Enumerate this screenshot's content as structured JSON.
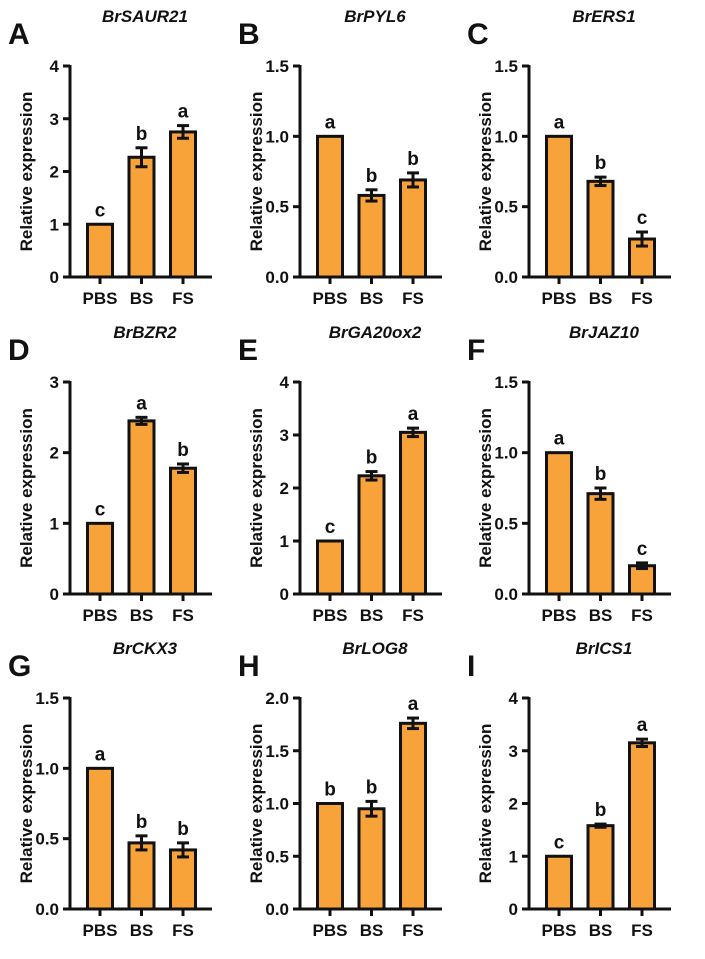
{
  "colors": {
    "bar": "#F7A33A",
    "stroke": "#111111"
  },
  "chart_data": [
    {
      "type": "bar",
      "panel": "A",
      "title": "BrSAUR21",
      "ylabel": "Relative expression",
      "categories": [
        "PBS",
        "BS",
        "FS"
      ],
      "values": [
        1.0,
        2.27,
        2.75
      ],
      "errors": [
        0,
        0.18,
        0.12
      ],
      "letters": [
        "c",
        "b",
        "a"
      ],
      "ylim": [
        0,
        4
      ],
      "yticks": [
        "0",
        "1",
        "2",
        "3",
        "4"
      ],
      "ytick_values": [
        0,
        1,
        2,
        3,
        4
      ]
    },
    {
      "type": "bar",
      "panel": "B",
      "title": "BrPYL6",
      "ylabel": "Relative expression",
      "categories": [
        "PBS",
        "BS",
        "FS"
      ],
      "values": [
        1.0,
        0.58,
        0.69
      ],
      "errors": [
        0,
        0.04,
        0.05
      ],
      "letters": [
        "a",
        "b",
        "b"
      ],
      "ylim": [
        0,
        1.5
      ],
      "yticks": [
        "0.0",
        "0.5",
        "1.0",
        "1.5"
      ],
      "ytick_values": [
        0,
        0.5,
        1,
        1.5
      ]
    },
    {
      "type": "bar",
      "panel": "C",
      "title": "BrERS1",
      "ylabel": "Relative expression",
      "categories": [
        "PBS",
        "BS",
        "FS"
      ],
      "values": [
        1.0,
        0.68,
        0.27
      ],
      "errors": [
        0,
        0.03,
        0.05
      ],
      "letters": [
        "a",
        "b",
        "c"
      ],
      "ylim": [
        0,
        1.5
      ],
      "yticks": [
        "0.0",
        "0.5",
        "1.0",
        "1.5"
      ],
      "ytick_values": [
        0,
        0.5,
        1,
        1.5
      ]
    },
    {
      "type": "bar",
      "panel": "D",
      "title": "BrBZR2",
      "ylabel": "Relative expression",
      "categories": [
        "PBS",
        "BS",
        "FS"
      ],
      "values": [
        1.0,
        2.45,
        1.78
      ],
      "errors": [
        0,
        0.05,
        0.06
      ],
      "letters": [
        "c",
        "a",
        "b"
      ],
      "ylim": [
        0,
        3
      ],
      "yticks": [
        "0",
        "1",
        "2",
        "3"
      ],
      "ytick_values": [
        0,
        1,
        2,
        3
      ]
    },
    {
      "type": "bar",
      "panel": "E",
      "title": "BrGA20ox2",
      "ylabel": "Relative expression",
      "categories": [
        "PBS",
        "BS",
        "FS"
      ],
      "values": [
        1.0,
        2.23,
        3.05
      ],
      "errors": [
        0,
        0.08,
        0.08
      ],
      "letters": [
        "c",
        "b",
        "a"
      ],
      "ylim": [
        0,
        4
      ],
      "yticks": [
        "0",
        "1",
        "2",
        "3",
        "4"
      ],
      "ytick_values": [
        0,
        1,
        2,
        3,
        4
      ]
    },
    {
      "type": "bar",
      "panel": "F",
      "title": "BrJAZ10",
      "ylabel": "Relative expression",
      "categories": [
        "PBS",
        "BS",
        "FS"
      ],
      "values": [
        1.0,
        0.71,
        0.2
      ],
      "errors": [
        0,
        0.04,
        0.02
      ],
      "letters": [
        "a",
        "b",
        "c"
      ],
      "ylim": [
        0,
        1.5
      ],
      "yticks": [
        "0.0",
        "0.5",
        "1.0",
        "1.5"
      ],
      "ytick_values": [
        0,
        0.5,
        1,
        1.5
      ]
    },
    {
      "type": "bar",
      "panel": "G",
      "title": "BrCKX3",
      "ylabel": "Relative expression",
      "categories": [
        "PBS",
        "BS",
        "FS"
      ],
      "values": [
        1.0,
        0.47,
        0.42
      ],
      "errors": [
        0,
        0.05,
        0.05
      ],
      "letters": [
        "a",
        "b",
        "b"
      ],
      "ylim": [
        0,
        1.5
      ],
      "yticks": [
        "0.0",
        "0.5",
        "1.0",
        "1.5"
      ],
      "ytick_values": [
        0,
        0.5,
        1,
        1.5
      ]
    },
    {
      "type": "bar",
      "panel": "H",
      "title": "BrLOG8",
      "ylabel": "Relative expression",
      "categories": [
        "PBS",
        "BS",
        "FS"
      ],
      "values": [
        1.0,
        0.95,
        1.76
      ],
      "errors": [
        0,
        0.07,
        0.05
      ],
      "letters": [
        "b",
        "b",
        "a"
      ],
      "ylim": [
        0,
        2
      ],
      "yticks": [
        "0.0",
        "0.5",
        "1.0",
        "1.5",
        "2.0"
      ],
      "ytick_values": [
        0,
        0.5,
        1,
        1.5,
        2
      ]
    },
    {
      "type": "bar",
      "panel": "I",
      "title": "BrICS1",
      "ylabel": "Relative expression",
      "categories": [
        "PBS",
        "BS",
        "FS"
      ],
      "values": [
        1.0,
        1.58,
        3.15
      ],
      "errors": [
        0,
        0.03,
        0.07
      ],
      "letters": [
        "c",
        "b",
        "a"
      ],
      "ylim": [
        0,
        4
      ],
      "yticks": [
        "0",
        "1",
        "2",
        "3",
        "4"
      ],
      "ytick_values": [
        0,
        1,
        2,
        3,
        4
      ]
    }
  ]
}
